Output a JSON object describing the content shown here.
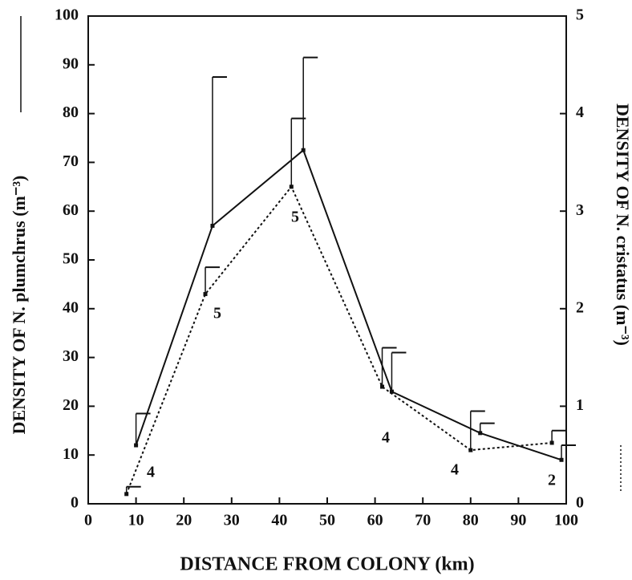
{
  "chart_data": {
    "type": "line",
    "x_label": "DISTANCE FROM COLONY (km)",
    "y_label": "DENSITY OF N. plumchrus (m⁻³)",
    "y2_label": "DENSITY OF N. cristatus (m⁻³)",
    "xlim": [
      0,
      100
    ],
    "xticks": [
      0,
      10,
      20,
      30,
      40,
      50,
      60,
      70,
      80,
      90,
      100
    ],
    "ylim": [
      0,
      100
    ],
    "yticks": [
      0,
      10,
      20,
      30,
      40,
      50,
      60,
      70,
      80,
      90,
      100
    ],
    "y2lim": [
      0,
      5
    ],
    "y2ticks": [
      0,
      1,
      2,
      3,
      4,
      5
    ],
    "series": [
      {
        "color": "#111111",
        "style": "solid",
        "x": [
          10,
          26,
          45,
          63.5,
          82,
          99
        ],
        "values": [
          12,
          57,
          72.5,
          23,
          14.5,
          9
        ],
        "errors": [
          6.5,
          30.5,
          19,
          8,
          2,
          3
        ]
      },
      {
        "color": "#111111",
        "style": "dotted",
        "axis": "y2",
        "x": [
          8,
          24.5,
          42.5,
          61.5,
          80,
          97
        ],
        "values": [
          0.1,
          2.15,
          3.25,
          1.2,
          0.55,
          0.625
        ],
        "errors": [
          0.075,
          0.275,
          0.7,
          0.4,
          0.4,
          0.125
        ]
      }
    ],
    "annotations": [
      "4",
      "5",
      "5",
      "4",
      "4",
      "2"
    ]
  }
}
